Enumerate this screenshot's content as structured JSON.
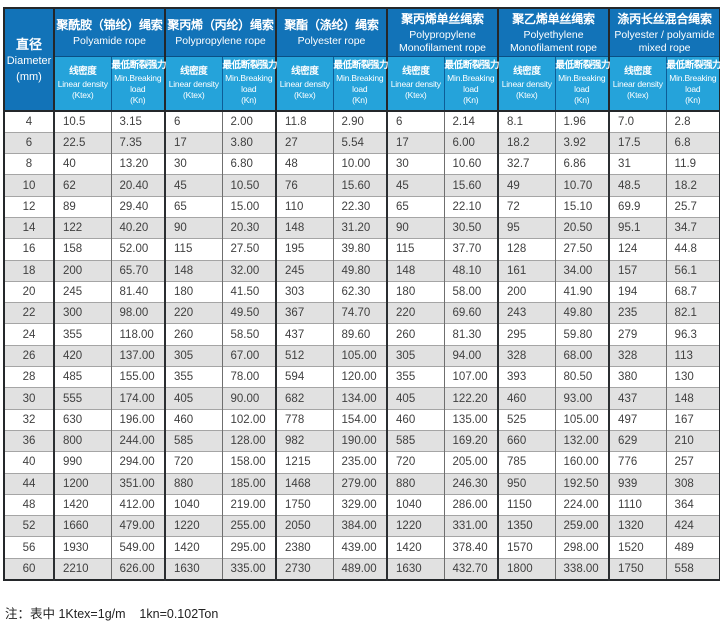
{
  "colors": {
    "header_dark_blue": "#1273b8",
    "header_light_blue": "#25a3da",
    "row_stripe_gray": "#e1e1e1",
    "border_dark": "#24272a"
  },
  "table": {
    "diameter_header": {
      "cn": "直径",
      "en": "Diameter",
      "unit": "(mm)"
    },
    "groups": [
      {
        "cn": "聚酰胺（锦纶）绳索",
        "en": "Polyamide rope"
      },
      {
        "cn": "聚丙烯（丙纶）绳索",
        "en": "Polypropylene rope"
      },
      {
        "cn": "聚酯（涤纶）绳索",
        "en": "Polyester rope"
      },
      {
        "cn": "聚丙烯单丝绳索",
        "en": "Polypropylene Monofilament rope"
      },
      {
        "cn": "聚乙烯单丝绳索",
        "en": "Polyethylene Monofilament rope"
      },
      {
        "cn": "涤丙长丝混合绳索",
        "en": "Polyester / polyamide mixed rope"
      }
    ],
    "subheaders": {
      "linear_density": {
        "cn": "线密度",
        "en": "Linear density",
        "unit": "(Ktex)"
      },
      "breaking_load": {
        "cn": "最低断裂强力",
        "en": "Min.Breaking",
        "en2": "load",
        "unit": "(Kn)"
      }
    },
    "rows": [
      {
        "diameter": "4",
        "values": [
          "10.5",
          "3.15",
          "6",
          "2.00",
          "11.8",
          "2.90",
          "6",
          "2.14",
          "8.1",
          "1.96",
          "7.0",
          "2.8"
        ]
      },
      {
        "diameter": "6",
        "values": [
          "22.5",
          "7.35",
          "17",
          "3.80",
          "27",
          "5.54",
          "17",
          "6.00",
          "18.2",
          "3.92",
          "17.5",
          "6.8"
        ]
      },
      {
        "diameter": "8",
        "values": [
          "40",
          "13.20",
          "30",
          "6.80",
          "48",
          "10.00",
          "30",
          "10.60",
          "32.7",
          "6.86",
          "31",
          "11.9"
        ]
      },
      {
        "diameter": "10",
        "values": [
          "62",
          "20.40",
          "45",
          "10.50",
          "76",
          "15.60",
          "45",
          "15.60",
          "49",
          "10.70",
          "48.5",
          "18.2"
        ]
      },
      {
        "diameter": "12",
        "values": [
          "89",
          "29.40",
          "65",
          "15.00",
          "110",
          "22.30",
          "65",
          "22.10",
          "72",
          "15.10",
          "69.9",
          "25.7"
        ]
      },
      {
        "diameter": "14",
        "values": [
          "122",
          "40.20",
          "90",
          "20.30",
          "148",
          "31.20",
          "90",
          "30.50",
          "95",
          "20.50",
          "95.1",
          "34.7"
        ]
      },
      {
        "diameter": "16",
        "values": [
          "158",
          "52.00",
          "115",
          "27.50",
          "195",
          "39.80",
          "115",
          "37.70",
          "128",
          "27.50",
          "124",
          "44.8"
        ]
      },
      {
        "diameter": "18",
        "values": [
          "200",
          "65.70",
          "148",
          "32.00",
          "245",
          "49.80",
          "148",
          "48.10",
          "161",
          "34.00",
          "157",
          "56.1"
        ]
      },
      {
        "diameter": "20",
        "values": [
          "245",
          "81.40",
          "180",
          "41.50",
          "303",
          "62.30",
          "180",
          "58.00",
          "200",
          "41.90",
          "194",
          "68.7"
        ]
      },
      {
        "diameter": "22",
        "values": [
          "300",
          "98.00",
          "220",
          "49.50",
          "367",
          "74.70",
          "220",
          "69.60",
          "243",
          "49.80",
          "235",
          "82.1"
        ]
      },
      {
        "diameter": "24",
        "values": [
          "355",
          "118.00",
          "260",
          "58.50",
          "437",
          "89.60",
          "260",
          "81.30",
          "295",
          "59.80",
          "279",
          "96.3"
        ]
      },
      {
        "diameter": "26",
        "values": [
          "420",
          "137.00",
          "305",
          "67.00",
          "512",
          "105.00",
          "305",
          "94.00",
          "328",
          "68.00",
          "328",
          "113"
        ]
      },
      {
        "diameter": "28",
        "values": [
          "485",
          "155.00",
          "355",
          "78.00",
          "594",
          "120.00",
          "355",
          "107.00",
          "393",
          "80.50",
          "380",
          "130"
        ]
      },
      {
        "diameter": "30",
        "values": [
          "555",
          "174.00",
          "405",
          "90.00",
          "682",
          "134.00",
          "405",
          "122.20",
          "460",
          "93.00",
          "437",
          "148"
        ]
      },
      {
        "diameter": "32",
        "values": [
          "630",
          "196.00",
          "460",
          "102.00",
          "778",
          "154.00",
          "460",
          "135.00",
          "525",
          "105.00",
          "497",
          "167"
        ]
      },
      {
        "diameter": "36",
        "values": [
          "800",
          "244.00",
          "585",
          "128.00",
          "982",
          "190.00",
          "585",
          "169.20",
          "660",
          "132.00",
          "629",
          "210"
        ]
      },
      {
        "diameter": "40",
        "values": [
          "990",
          "294.00",
          "720",
          "158.00",
          "1215",
          "235.00",
          "720",
          "205.00",
          "785",
          "160.00",
          "776",
          "257"
        ]
      },
      {
        "diameter": "44",
        "values": [
          "1200",
          "351.00",
          "880",
          "185.00",
          "1468",
          "279.00",
          "880",
          "246.30",
          "950",
          "192.50",
          "939",
          "308"
        ]
      },
      {
        "diameter": "48",
        "values": [
          "1420",
          "412.00",
          "1040",
          "219.00",
          "1750",
          "329.00",
          "1040",
          "286.00",
          "1150",
          "224.00",
          "1110",
          "364"
        ]
      },
      {
        "diameter": "52",
        "values": [
          "1660",
          "479.00",
          "1220",
          "255.00",
          "2050",
          "384.00",
          "1220",
          "331.00",
          "1350",
          "259.00",
          "1320",
          "424"
        ]
      },
      {
        "diameter": "56",
        "values": [
          "1930",
          "549.00",
          "1420",
          "295.00",
          "2380",
          "439.00",
          "1420",
          "378.40",
          "1570",
          "298.00",
          "1520",
          "489"
        ]
      },
      {
        "diameter": "60",
        "values": [
          "2210",
          "626.00",
          "1630",
          "335.00",
          "2730",
          "489.00",
          "1630",
          "432.70",
          "1800",
          "338.00",
          "1750",
          "558"
        ]
      }
    ]
  },
  "footnote": "注：表中 1Ktex=1g/m    1kn=0.102Ton"
}
